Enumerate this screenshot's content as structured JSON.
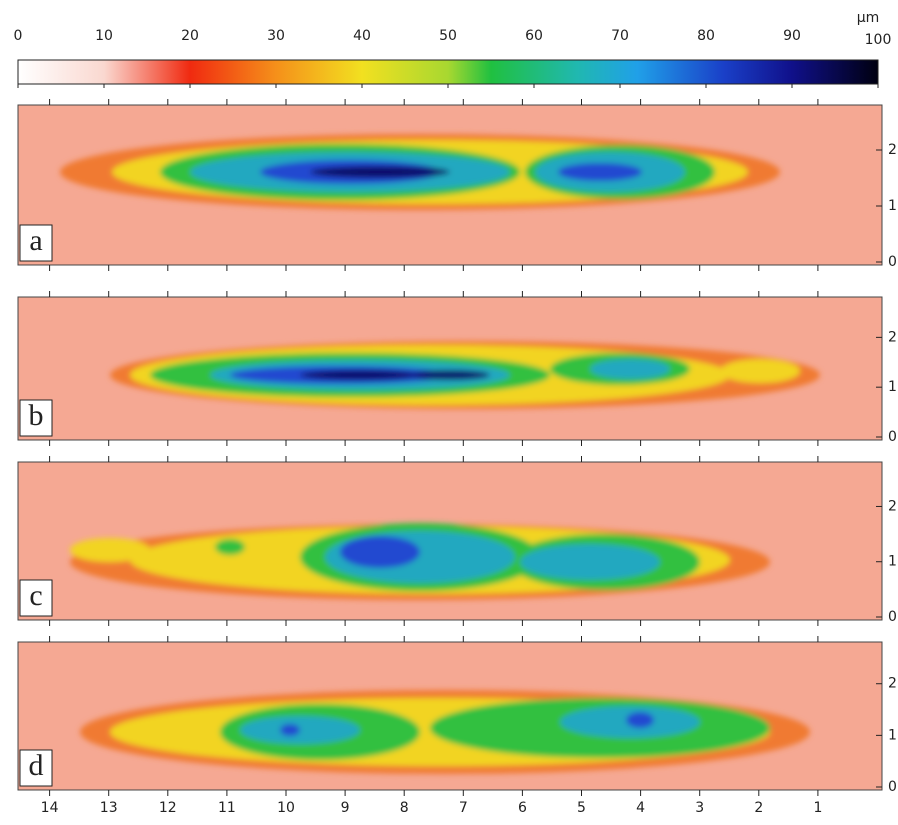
{
  "colorbar": {
    "unit": "µm",
    "ticks": [
      0,
      10,
      20,
      30,
      40,
      50,
      60,
      70,
      80,
      90,
      100
    ]
  },
  "panels": [
    {
      "label": "a"
    },
    {
      "label": "b"
    },
    {
      "label": "c"
    },
    {
      "label": "d"
    }
  ],
  "x_axis": {
    "ticks": [
      14,
      13,
      12,
      11,
      10,
      9,
      8,
      7,
      6,
      5,
      4,
      3,
      2,
      1
    ]
  },
  "y_axis": {
    "ticks": [
      0,
      1,
      2
    ]
  }
}
